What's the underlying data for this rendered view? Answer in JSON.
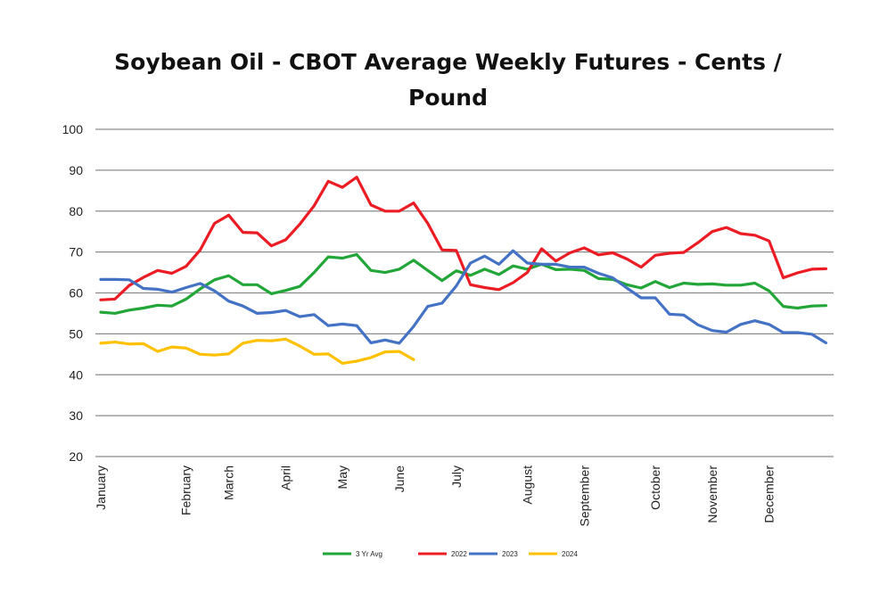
{
  "chart_data": {
    "type": "line",
    "title": "Soybean Oil - CBOT Average Weekly Futures - Cents / Pound",
    "title_lines": [
      "Soybean Oil - CBOT Average Weekly Futures - Cents /",
      "Pound"
    ],
    "xlabel": "",
    "ylabel": "",
    "ylim": [
      20,
      100
    ],
    "yticks": [
      100,
      90,
      80,
      70,
      60,
      50,
      40,
      30,
      20
    ],
    "grid": true,
    "legend_position": "bottom",
    "weeks": 52,
    "month_labels": [
      {
        "label": "January",
        "week": 1
      },
      {
        "label": "February",
        "week": 7
      },
      {
        "label": "March",
        "week": 10
      },
      {
        "label": "April",
        "week": 14
      },
      {
        "label": "May",
        "week": 18
      },
      {
        "label": "June",
        "week": 22
      },
      {
        "label": "July",
        "week": 26
      },
      {
        "label": "August",
        "week": 31
      },
      {
        "label": "September",
        "week": 35
      },
      {
        "label": "October",
        "week": 40
      },
      {
        "label": "November",
        "week": 44
      },
      {
        "label": "December",
        "week": 48
      }
    ],
    "series": [
      {
        "name": "3 Yr Avg",
        "color": "#22a638",
        "values": [
          55.3,
          55,
          55.8,
          56.3,
          57,
          56.8,
          58.5,
          61,
          63.2,
          64.2,
          62,
          62,
          59.8,
          60.6,
          61.6,
          65,
          68.8,
          68.5,
          69.4,
          65.5,
          65,
          65.8,
          68,
          65.5,
          63,
          65.4,
          64.3,
          65.8,
          64.5,
          66.6,
          65.8,
          67,
          65.7,
          65.8,
          65.5,
          63.5,
          63.3,
          62,
          61.2,
          62.8,
          61.3,
          62.4,
          62.1,
          62.2,
          61.9,
          61.9,
          62.4,
          60.5,
          56.7,
          56.3,
          56.8,
          56.9
        ]
      },
      {
        "name": "2022",
        "color": "#ec1c24",
        "values": [
          58.3,
          58.5,
          61.8,
          63.8,
          65.5,
          64.8,
          66.5,
          70.5,
          77,
          79,
          74.8,
          74.7,
          71.5,
          73,
          76.8,
          81.3,
          87.3,
          85.8,
          88.3,
          81.5,
          80,
          80,
          82,
          77,
          70.5,
          70.4,
          62,
          61.3,
          60.8,
          62.5,
          65,
          70.8,
          67.8,
          69.8,
          71,
          69.3,
          69.8,
          68.3,
          66.3,
          69.2,
          69.7,
          69.9,
          72.3,
          75,
          76,
          74.5,
          74.1,
          72.7,
          63.7,
          64.9,
          65.8,
          65.9
        ]
      },
      {
        "name": "2023",
        "color": "#4472c4",
        "values": [
          63.3,
          63.3,
          63.2,
          61.1,
          60.9,
          60.2,
          61.3,
          62.3,
          60.5,
          58,
          56.8,
          55,
          55.2,
          55.7,
          54.2,
          54.7,
          52,
          52.4,
          52,
          47.8,
          48.5,
          47.7,
          51.8,
          56.7,
          57.5,
          61.7,
          67.3,
          69,
          67,
          70.3,
          67.3,
          67,
          67,
          66.3,
          66.3,
          64.8,
          63.7,
          61.2,
          58.8,
          58.8,
          54.8,
          54.6,
          52.2,
          50.8,
          50.4,
          52.3,
          53.2,
          52.3,
          50.3,
          50.3,
          49.9,
          47.8
        ]
      },
      {
        "name": "2024",
        "color": "#ffc000",
        "values": [
          47.7,
          48,
          47.5,
          47.6,
          45.7,
          46.8,
          46.5,
          45,
          44.8,
          45.1,
          47.7,
          48.4,
          48.3,
          48.7,
          47,
          45,
          45.1,
          42.8,
          43.3,
          44.2,
          45.6,
          45.7,
          43.7
        ]
      }
    ]
  }
}
